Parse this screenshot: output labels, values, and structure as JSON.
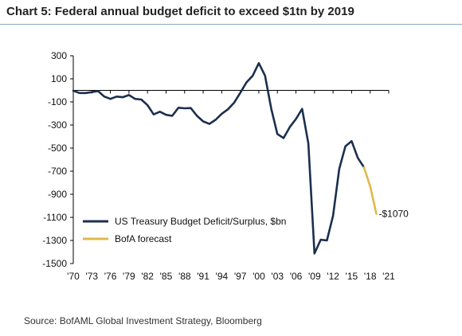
{
  "title": "Chart 5: Federal annual budget deficit to exceed $1tn by 2019",
  "source": "Source: BofAML Global Investment Strategy, Bloomberg",
  "colors": {
    "actual": "#1c2f4f",
    "forecast": "#e0b84a",
    "axis": "#000000",
    "title_rule": "#8aa8c8"
  },
  "chart_data": {
    "type": "line",
    "title": "Chart 5: Federal annual budget deficit to exceed $1tn by 2019",
    "xlabel": "",
    "ylabel": "",
    "ylim": [
      -1500,
      300
    ],
    "yticks": [
      300,
      100,
      -100,
      -300,
      -500,
      -700,
      -900,
      -1100,
      -1300,
      -1500
    ],
    "xlim": [
      1970,
      2021
    ],
    "xticks": [
      "'70",
      "'73",
      "'76",
      "'79",
      "'82",
      "'85",
      "'88",
      "'91",
      "'94",
      "'97",
      "'00",
      "'03",
      "'06",
      "'09",
      "'12",
      "'15",
      "'18",
      "'21"
    ],
    "xtick_years": [
      1970,
      1973,
      1976,
      1979,
      1982,
      1985,
      1988,
      1991,
      1994,
      1997,
      2000,
      2003,
      2006,
      2009,
      2012,
      2015,
      2018,
      2021
    ],
    "legend_position": "bottom-left",
    "series": [
      {
        "name": "US Treasury Budget Deficit/Surplus, $bn",
        "color": "#1c2f4f",
        "x": [
          1970,
          1971,
          1972,
          1973,
          1974,
          1975,
          1976,
          1977,
          1978,
          1979,
          1980,
          1981,
          1982,
          1983,
          1984,
          1985,
          1986,
          1987,
          1988,
          1989,
          1990,
          1991,
          1992,
          1993,
          1994,
          1995,
          1996,
          1997,
          1998,
          1999,
          2000,
          2001,
          2002,
          2003,
          2004,
          2005,
          2006,
          2007,
          2008,
          2009,
          2010,
          2011,
          2012,
          2013,
          2014,
          2015,
          2016,
          2017
        ],
        "values": [
          -3,
          -23,
          -23,
          -15,
          -6,
          -53,
          -74,
          -54,
          -59,
          -41,
          -74,
          -79,
          -128,
          -208,
          -185,
          -212,
          -221,
          -150,
          -155,
          -153,
          -221,
          -269,
          -290,
          -255,
          -203,
          -164,
          -107,
          -22,
          69,
          126,
          236,
          128,
          -158,
          -378,
          -413,
          -318,
          -248,
          -161,
          -459,
          -1413,
          -1294,
          -1300,
          -1087,
          -680,
          -485,
          -439,
          -585,
          -666
        ]
      },
      {
        "name": "BofA forecast",
        "color": "#e0b84a",
        "x": [
          2017,
          2018,
          2019
        ],
        "values": [
          -666,
          -830,
          -1070
        ]
      }
    ],
    "annotations": [
      {
        "x": 2019,
        "y": -1070,
        "text": "-$1070"
      }
    ]
  }
}
